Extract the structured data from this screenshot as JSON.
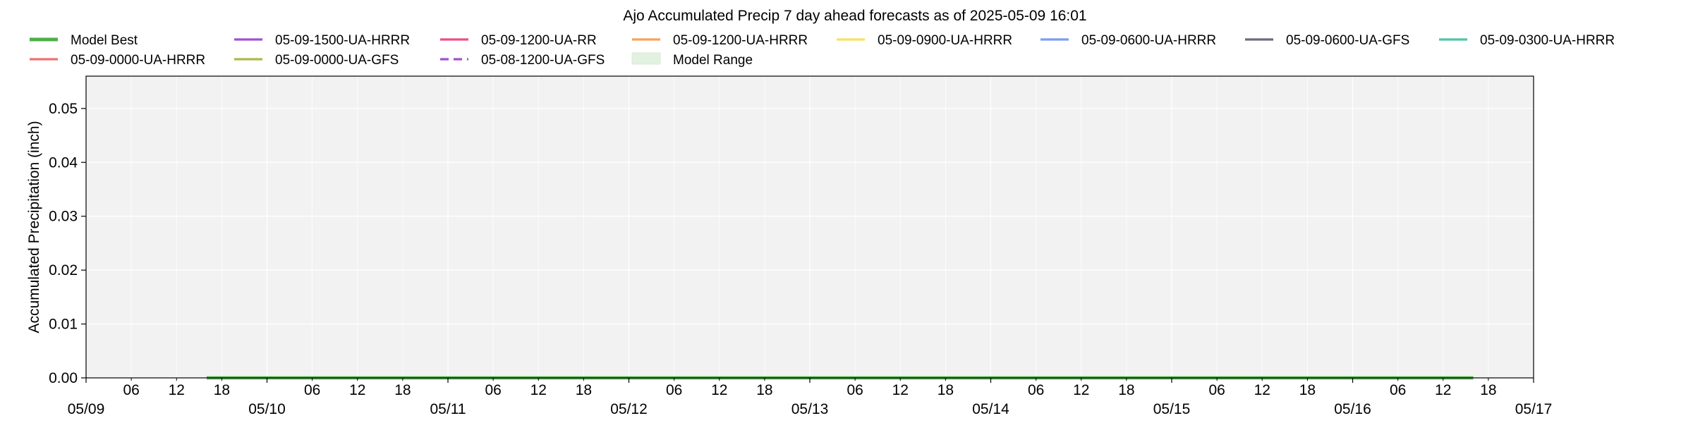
{
  "chart_data": {
    "type": "line",
    "title": "Ajo Accumulated Precip 7 day ahead forecasts as of 2025-05-09 16:01",
    "xlabel": "",
    "ylabel": "Accumulated Precipitation (inch)",
    "xlim": [
      "2025-05-09 00:00",
      "2025-05-17 00:00"
    ],
    "ylim": [
      0,
      0.056
    ],
    "y_ticks": [
      0.0,
      0.01,
      0.02,
      0.03,
      0.04,
      0.05
    ],
    "y_tick_labels": [
      "0.00",
      "0.01",
      "0.02",
      "0.03",
      "0.04",
      "0.05"
    ],
    "x_major_ticks": [
      "05/09",
      "05/10",
      "05/11",
      "05/12",
      "05/13",
      "05/14",
      "05/15",
      "05/16",
      "05/17"
    ],
    "x_minor_ticks": [
      "06",
      "12",
      "18"
    ],
    "grid": true,
    "plot_background": "#f2f2f2",
    "legend_position": "top",
    "legend": [
      {
        "label": "Model Best",
        "color": "#4daf4a",
        "style": "solid-thick"
      },
      {
        "label": "05-09-1500-UA-HRRR",
        "color": "#a24fd1",
        "style": "solid"
      },
      {
        "label": "05-09-1200-UA-RR",
        "color": "#ec4f82",
        "style": "solid"
      },
      {
        "label": "05-09-1200-UA-HRRR",
        "color": "#f6a25a",
        "style": "solid"
      },
      {
        "label": "05-09-0900-UA-HRRR",
        "color": "#f8e05f",
        "style": "solid"
      },
      {
        "label": "05-09-0600-UA-HRRR",
        "color": "#7b9df0",
        "style": "solid"
      },
      {
        "label": "05-09-0600-UA-GFS",
        "color": "#6b6b7f",
        "style": "solid"
      },
      {
        "label": "05-09-0300-UA-HRRR",
        "color": "#4fc7a5",
        "style": "solid"
      },
      {
        "label": "05-09-0000-UA-HRRR",
        "color": "#f07070",
        "style": "solid"
      },
      {
        "label": "05-09-0000-UA-GFS",
        "color": "#b0b84a",
        "style": "solid"
      },
      {
        "label": "05-08-1200-UA-GFS",
        "color": "#a24fd1",
        "style": "dashed"
      },
      {
        "label": "Model Range",
        "color": "#e3f1e1",
        "style": "patch"
      }
    ],
    "series": [
      {
        "name": "Model Best",
        "color": "#4daf4a",
        "x": [
          "2025-05-09 16:00",
          "2025-05-16 16:00"
        ],
        "values": [
          0.0,
          0.0
        ]
      }
    ]
  }
}
